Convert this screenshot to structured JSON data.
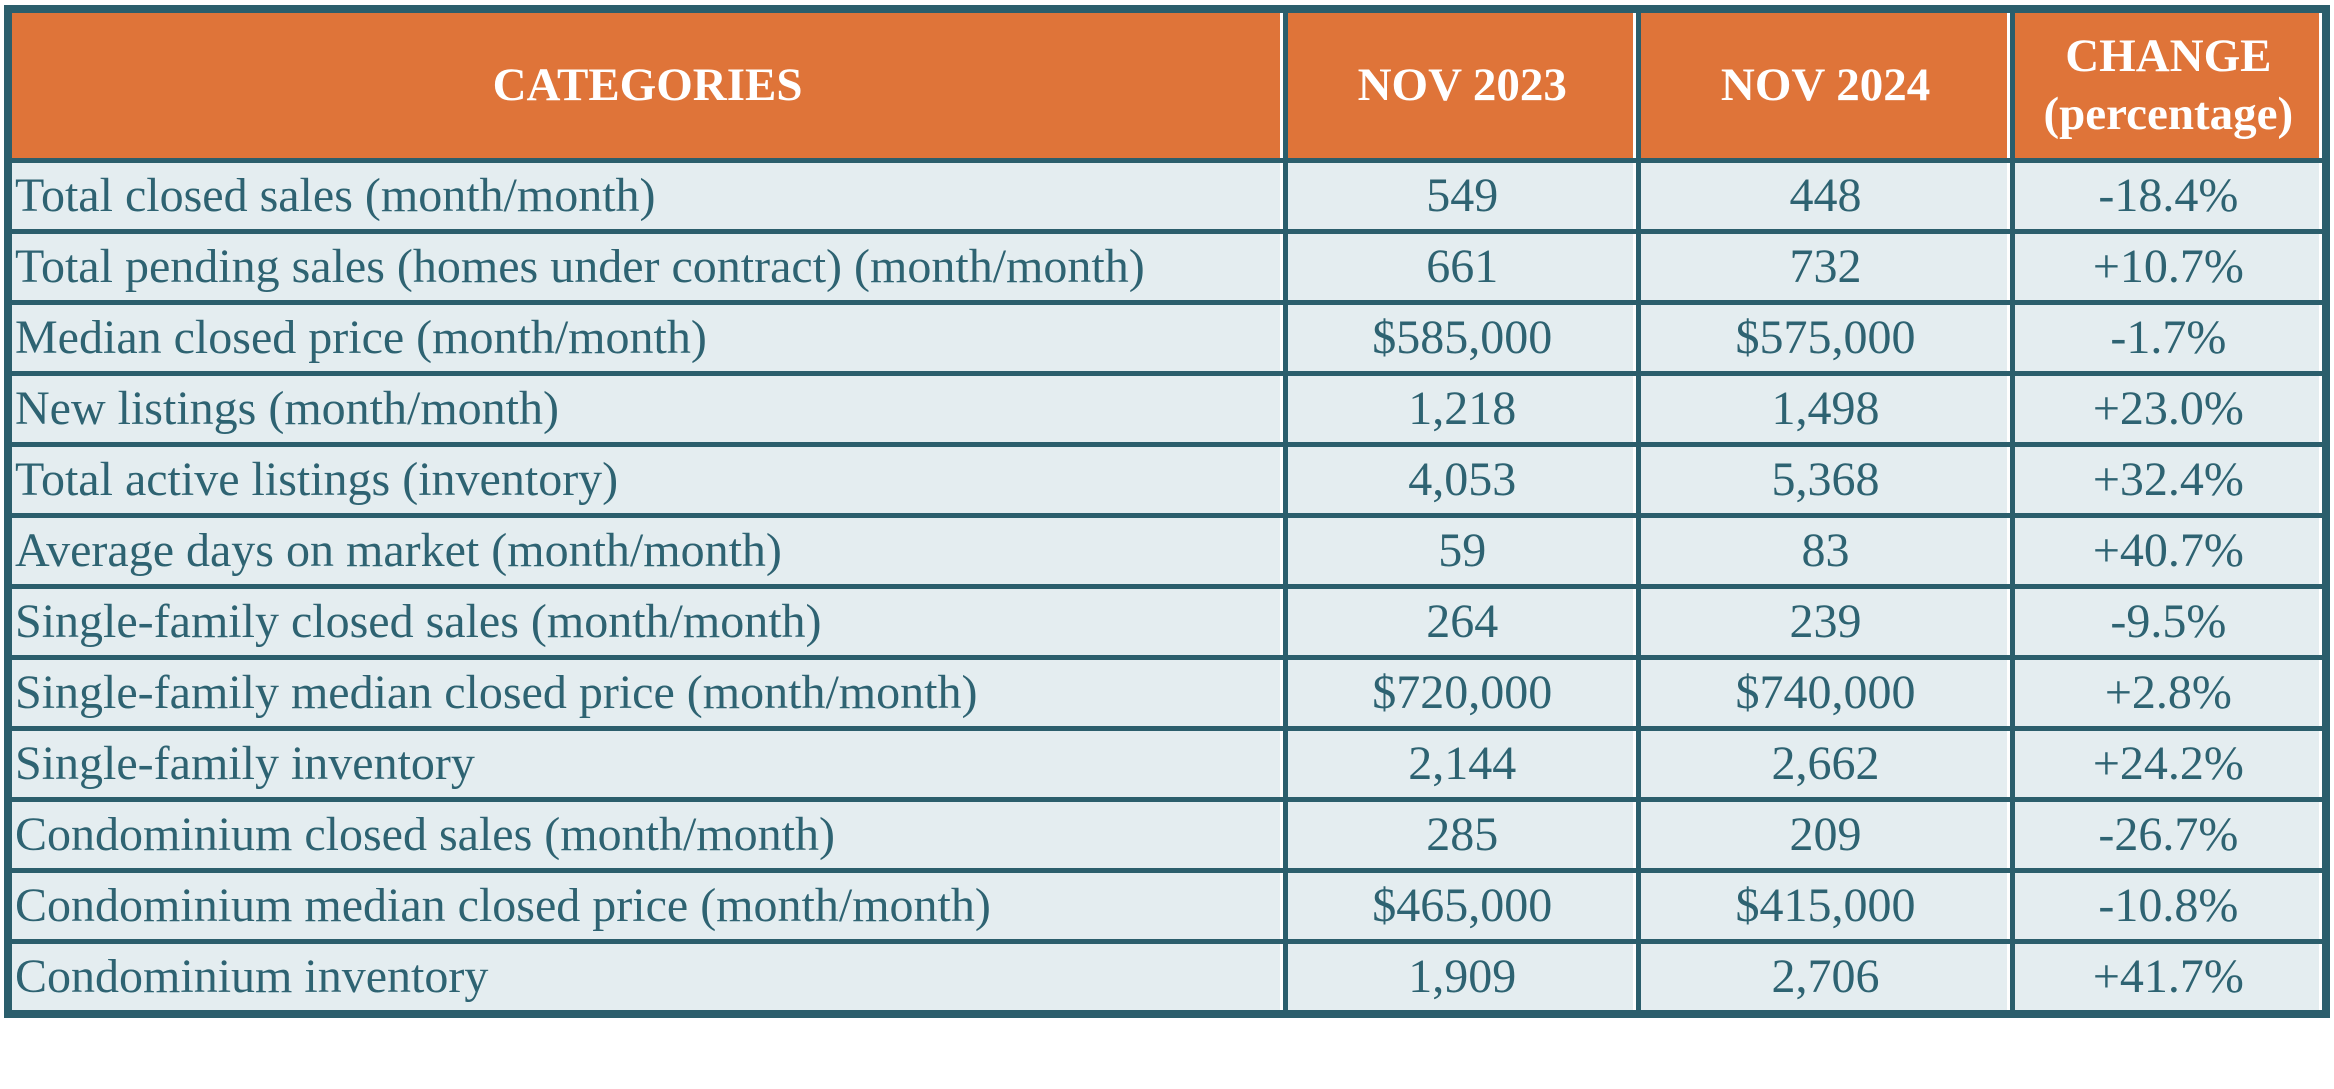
{
  "table": {
    "columns": [
      "CATEGORIES",
      "NOV 2023",
      "NOV 2024",
      "CHANGE (percentage)"
    ],
    "rows": [
      [
        "Total closed sales (month/month)",
        "549",
        "448",
        "-18.4%"
      ],
      [
        "Total pending sales (homes under contract) (month/month)",
        "661",
        "732",
        "+10.7%"
      ],
      [
        "Median closed price (month/month)",
        "$585,000",
        "$575,000",
        "-1.7%"
      ],
      [
        "New listings (month/month)",
        "1,218",
        "1,498",
        "+23.0%"
      ],
      [
        "Total active listings (inventory)",
        "4,053",
        "5,368",
        "+32.4%"
      ],
      [
        "Average days on market (month/month)",
        "59",
        "83",
        "+40.7%"
      ],
      [
        "Single-family closed sales (month/month)",
        "264",
        "239",
        "-9.5%"
      ],
      [
        "Single-family median closed price (month/month)",
        "$720,000",
        "$740,000",
        "+2.8%"
      ],
      [
        "Single-family inventory",
        "2,144",
        "2,662",
        "+24.2%"
      ],
      [
        "Condominium closed sales (month/month)",
        "285",
        "209",
        "-26.7%"
      ],
      [
        "Condominium median closed price (month/month)",
        "$465,000",
        "$415,000",
        "-10.8%"
      ],
      [
        "Condominium inventory",
        "1,909",
        "2,706",
        "+41.7%"
      ]
    ]
  },
  "colors": {
    "header_bg": "#DF7439",
    "header_text": "#FFFFFF",
    "border": "#2B5E6C",
    "row_bg": "#E4EDF0",
    "row_text": "#2E6372"
  },
  "chart_data": {
    "type": "table",
    "title": "",
    "columns": [
      "CATEGORIES",
      "NOV 2023",
      "NOV 2024",
      "CHANGE (percentage)"
    ],
    "rows": [
      {
        "category": "Total closed sales (month/month)",
        "nov_2023": 549,
        "nov_2024": 448,
        "change_pct": -18.4
      },
      {
        "category": "Total pending sales (homes under contract) (month/month)",
        "nov_2023": 661,
        "nov_2024": 732,
        "change_pct": 10.7
      },
      {
        "category": "Median closed price (month/month)",
        "nov_2023": 585000,
        "nov_2024": 575000,
        "change_pct": -1.7
      },
      {
        "category": "New listings (month/month)",
        "nov_2023": 1218,
        "nov_2024": 1498,
        "change_pct": 23.0
      },
      {
        "category": "Total active listings (inventory)",
        "nov_2023": 4053,
        "nov_2024": 5368,
        "change_pct": 32.4
      },
      {
        "category": "Average days on market (month/month)",
        "nov_2023": 59,
        "nov_2024": 83,
        "change_pct": 40.7
      },
      {
        "category": "Single-family closed sales (month/month)",
        "nov_2023": 264,
        "nov_2024": 239,
        "change_pct": -9.5
      },
      {
        "category": "Single-family median closed price (month/month)",
        "nov_2023": 720000,
        "nov_2024": 740000,
        "change_pct": 2.8
      },
      {
        "category": "Single-family inventory",
        "nov_2023": 2144,
        "nov_2024": 2662,
        "change_pct": 24.2
      },
      {
        "category": "Condominium closed sales (month/month)",
        "nov_2023": 285,
        "nov_2024": 209,
        "change_pct": -26.7
      },
      {
        "category": "Condominium median closed price (month/month)",
        "nov_2023": 465000,
        "nov_2024": 415000,
        "change_pct": -10.8
      },
      {
        "category": "Condominium inventory",
        "nov_2023": 1909,
        "nov_2024": 2706,
        "change_pct": 41.7
      }
    ]
  }
}
